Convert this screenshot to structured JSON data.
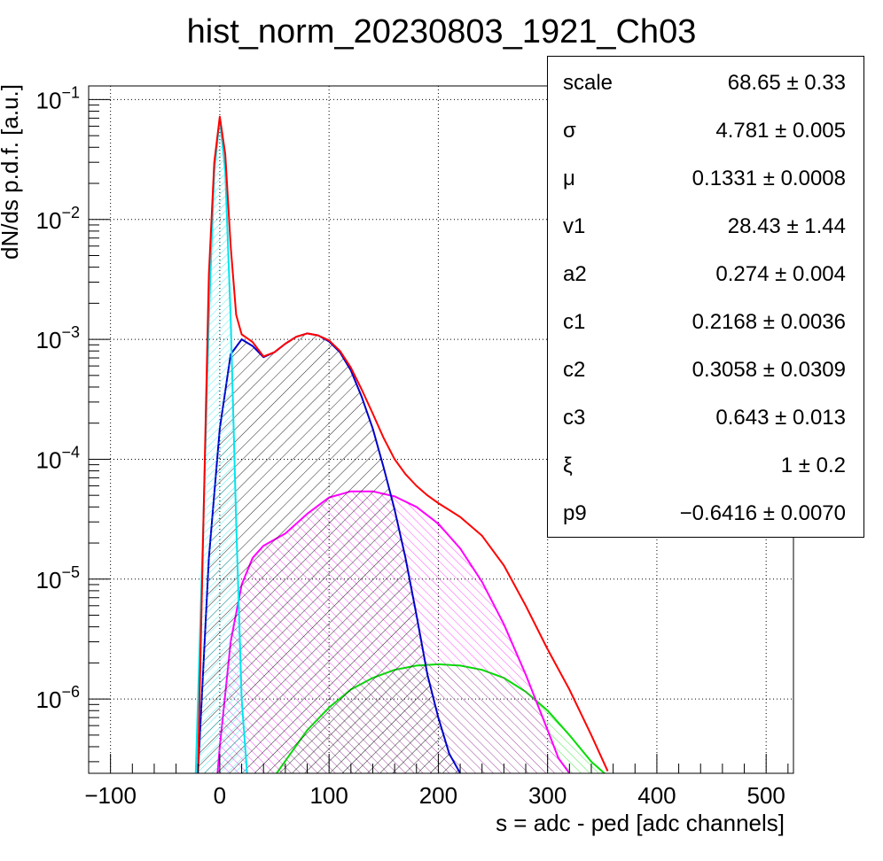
{
  "chart_data": {
    "type": "line",
    "title": "hist_norm_20230803_1921_Ch03",
    "xlabel": "s = adc - ped [adc channels]",
    "ylabel": "dN/ds p.d.f. [a.u.]",
    "xlim": [
      -120,
      525
    ],
    "ylim": [
      2.4e-07,
      0.13
    ],
    "yscale": "log",
    "grid": true,
    "x_ticks": [
      -100,
      0,
      100,
      200,
      300,
      400,
      500
    ],
    "x_tick_labels": [
      "−100",
      "0",
      "100",
      "200",
      "300",
      "400",
      "500"
    ],
    "y_ticks": [
      {
        "value": 1e-06,
        "base": "10",
        "exp": "−6"
      },
      {
        "value": 1e-05,
        "base": "10",
        "exp": "−5"
      },
      {
        "value": 0.0001,
        "base": "10",
        "exp": "−4"
      },
      {
        "value": 0.001,
        "base": "10",
        "exp": "−3"
      },
      {
        "value": 0.01,
        "base": "10",
        "exp": "−2"
      },
      {
        "value": 0.1,
        "base": "10",
        "exp": "−1"
      }
    ],
    "series": [
      {
        "color": "#ff0000",
        "fill": "none",
        "x": [
          -20,
          -10,
          -5,
          0,
          5,
          10,
          15,
          20,
          30,
          40,
          50,
          60,
          70,
          80,
          90,
          100,
          110,
          120,
          130,
          140,
          150,
          160,
          170,
          180,
          190,
          200,
          220,
          240,
          260,
          280,
          300,
          320,
          340,
          355
        ],
        "y": [
          2.5e-07,
          0.0035,
          0.03,
          0.072,
          0.035,
          0.006,
          0.0016,
          0.0011,
          0.00095,
          0.00072,
          0.00078,
          0.00092,
          0.00105,
          0.00112,
          0.00108,
          0.00098,
          0.0008,
          0.00058,
          0.00038,
          0.00024,
          0.00015,
          0.0001,
          7.5e-05,
          6e-05,
          5e-05,
          4.3e-05,
          3.3e-05,
          2.3e-05,
          1.3e-05,
          6e-06,
          2.6e-06,
          1.2e-06,
          5e-07,
          2.5e-07
        ]
      },
      {
        "color": "#00e5ee",
        "fill": "#00e5ee",
        "x": [
          -22,
          -15,
          -10,
          -5,
          0,
          5,
          10,
          15,
          20,
          25
        ],
        "y": [
          2.4e-07,
          3e-05,
          0.0015,
          0.025,
          0.07,
          0.025,
          0.0015,
          3e-05,
          1e-06,
          2.4e-07
        ]
      },
      {
        "color": "#0000cc",
        "fill": "#000000",
        "x": [
          -20,
          -10,
          0,
          10,
          20,
          30,
          40,
          50,
          60,
          70,
          80,
          90,
          100,
          110,
          120,
          130,
          140,
          150,
          160,
          170,
          180,
          190,
          200,
          210,
          220
        ],
        "y": [
          2.4e-07,
          1.5e-05,
          0.00018,
          0.00075,
          0.001,
          0.00088,
          0.00071,
          0.00078,
          0.00092,
          0.00105,
          0.00112,
          0.00108,
          0.00096,
          0.00078,
          0.00055,
          0.00033,
          0.00018,
          8.5e-05,
          3.8e-05,
          1.5e-05,
          5e-06,
          1.6e-06,
          7e-07,
          3.5e-07,
          2.4e-07
        ]
      },
      {
        "color": "#ff00ff",
        "fill": "#ff00ff",
        "x": [
          -2,
          0,
          10,
          20,
          30,
          40,
          60,
          80,
          100,
          120,
          140,
          160,
          180,
          200,
          220,
          240,
          260,
          280,
          300,
          310,
          320
        ],
        "y": [
          2.4e-07,
          4e-07,
          3e-06,
          9e-06,
          1.5e-05,
          1.9e-05,
          2.4e-05,
          3.5e-05,
          4.8e-05,
          5.4e-05,
          5.4e-05,
          4.9e-05,
          4e-05,
          2.9e-05,
          1.8e-05,
          9.5e-06,
          4.2e-06,
          1.6e-06,
          5.5e-07,
          3.2e-07,
          2.4e-07
        ]
      },
      {
        "color": "#00dd00",
        "fill": "#00dd00",
        "x": [
          52,
          80,
          100,
          120,
          140,
          160,
          180,
          200,
          220,
          240,
          260,
          280,
          300,
          320,
          340,
          352
        ],
        "y": [
          2.4e-07,
          5.5e-07,
          8.5e-07,
          1.2e-06,
          1.5e-06,
          1.75e-06,
          1.9e-06,
          1.95e-06,
          1.9e-06,
          1.75e-06,
          1.5e-06,
          1.15e-06,
          8e-07,
          5e-07,
          3e-07,
          2.4e-07
        ]
      }
    ],
    "stats": [
      {
        "name": "scale",
        "value": "68.65 ± 0.33"
      },
      {
        "name": "σ",
        "value": "4.781 ± 0.005"
      },
      {
        "name": "μ",
        "value": "0.1331 ± 0.0008"
      },
      {
        "name": "v1",
        "value": "28.43 ± 1.44"
      },
      {
        "name": "a2",
        "value": "0.274 ± 0.004"
      },
      {
        "name": "c1",
        "value": "0.2168 ± 0.0036"
      },
      {
        "name": "c2",
        "value": "0.3058 ± 0.0309"
      },
      {
        "name": "c3",
        "value": "0.643 ± 0.013"
      },
      {
        "name": "ξ",
        "value": "1 ± 0.2"
      },
      {
        "name": "p9",
        "value": "−0.6416 ± 0.0070"
      }
    ]
  }
}
